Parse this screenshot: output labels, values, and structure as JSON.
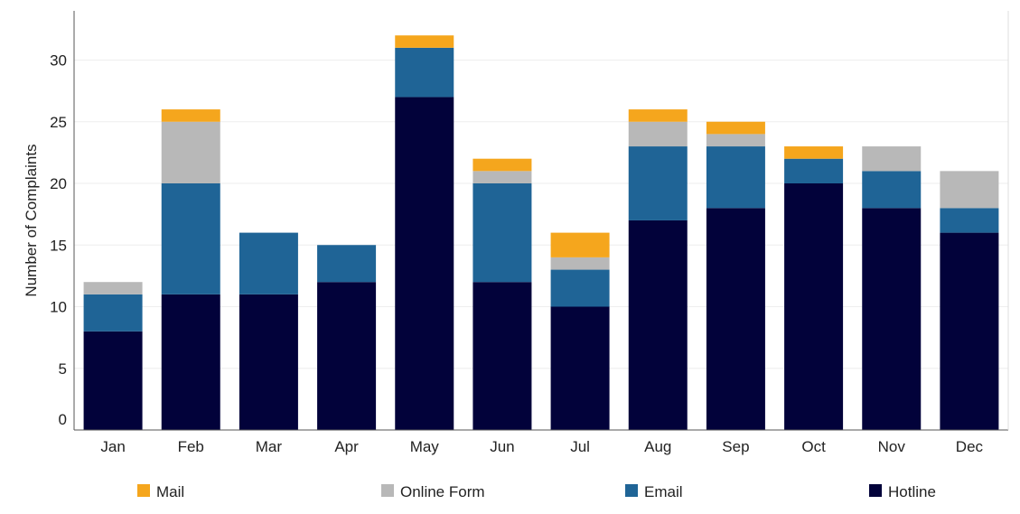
{
  "chart_data": {
    "type": "bar",
    "stacked": true,
    "title": "",
    "xlabel": "",
    "ylabel": "Number of Complaints",
    "ylim": [
      0,
      34
    ],
    "yticks": [
      0,
      5,
      10,
      15,
      20,
      25,
      30
    ],
    "categories": [
      "Jan",
      "Feb",
      "Mar",
      "Apr",
      "May",
      "Jun",
      "Jul",
      "Aug",
      "Sep",
      "Oct",
      "Nov",
      "Dec"
    ],
    "series": [
      {
        "name": "Hotline",
        "color": "#02023a",
        "values": [
          8,
          11,
          11,
          12,
          27,
          12,
          10,
          17,
          18,
          20,
          18,
          16
        ]
      },
      {
        "name": "Email",
        "color": "#1f6496",
        "values": [
          3,
          9,
          5,
          3,
          4,
          8,
          3,
          6,
          5,
          2,
          3,
          2
        ]
      },
      {
        "name": "Online Form",
        "color": "#b8b8b8",
        "values": [
          1,
          5,
          0,
          0,
          0,
          1,
          1,
          2,
          1,
          0,
          2,
          3
        ]
      },
      {
        "name": "Mail",
        "color": "#f5a61d",
        "values": [
          0,
          1,
          0,
          0,
          1,
          1,
          2,
          1,
          1,
          1,
          0,
          0
        ]
      }
    ],
    "legend": {
      "position": "bottom",
      "order": [
        "Mail",
        "Online Form",
        "Email",
        "Hotline"
      ]
    },
    "grid": true
  }
}
